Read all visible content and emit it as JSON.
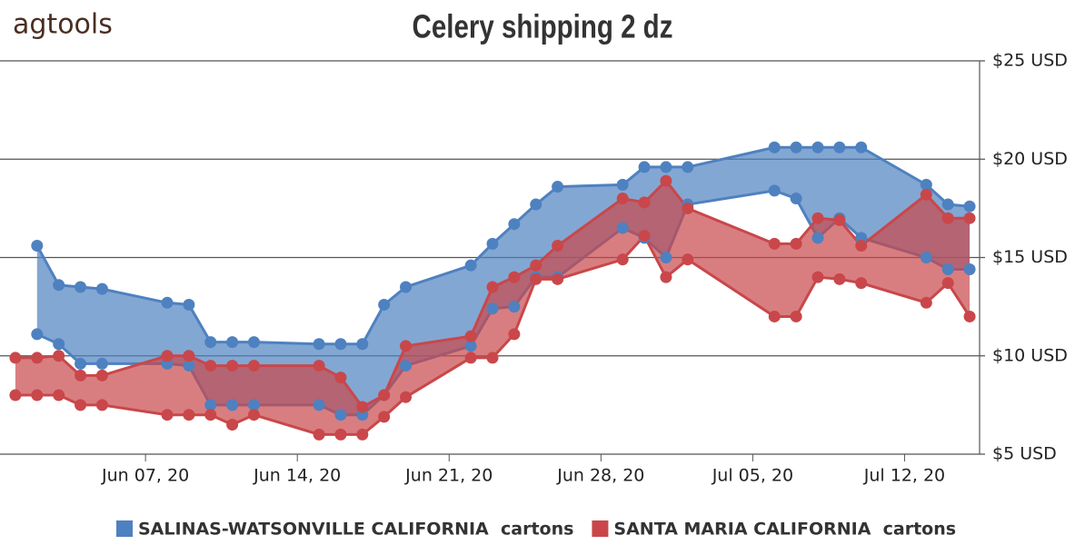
{
  "logo": "agtools",
  "chart_data": {
    "type": "arearange",
    "title": "Celery shipping   2 dz",
    "x": [
      "2020-06-01",
      "2020-06-02",
      "2020-06-03",
      "2020-06-04",
      "2020-06-05",
      "2020-06-08",
      "2020-06-09",
      "2020-06-10",
      "2020-06-11",
      "2020-06-12",
      "2020-06-15",
      "2020-06-16",
      "2020-06-17",
      "2020-06-18",
      "2020-06-19",
      "2020-06-22",
      "2020-06-23",
      "2020-06-24",
      "2020-06-25",
      "2020-06-26",
      "2020-06-29",
      "2020-06-30",
      "2020-07-01",
      "2020-07-02",
      "2020-07-06",
      "2020-07-07",
      "2020-07-08",
      "2020-07-09",
      "2020-07-10",
      "2020-07-13",
      "2020-07-14",
      "2020-07-15"
    ],
    "series": [
      {
        "name": "SALINAS-WATSONVILLE CALIFORNIA  cartons",
        "color": "#4e81c0",
        "high": [
          null,
          15.6,
          13.6,
          13.5,
          13.4,
          12.7,
          12.6,
          10.7,
          10.7,
          10.7,
          10.6,
          10.6,
          10.6,
          12.6,
          13.5,
          14.6,
          15.7,
          16.7,
          17.7,
          18.6,
          18.7,
          19.6,
          19.6,
          19.6,
          20.6,
          20.6,
          20.6,
          20.6,
          20.6,
          18.7,
          17.7,
          17.6
        ],
        "low": [
          null,
          11.1,
          10.6,
          9.6,
          9.6,
          9.6,
          9.5,
          7.5,
          7.5,
          7.5,
          7.5,
          7.0,
          7.0,
          8.0,
          9.5,
          10.5,
          12.4,
          12.5,
          14.0,
          14.0,
          16.5,
          16.0,
          15.0,
          17.7,
          18.4,
          18.0,
          16.0,
          17.0,
          16.0,
          15.0,
          14.4,
          14.4
        ]
      },
      {
        "name": "SANTA MARIA CALIFORNIA  cartons",
        "color": "#c9474a",
        "high": [
          9.9,
          9.9,
          10.0,
          9.0,
          9.0,
          10.0,
          10.0,
          9.5,
          9.5,
          9.5,
          9.5,
          8.9,
          7.4,
          8.0,
          10.5,
          11.0,
          13.5,
          14.0,
          14.6,
          15.6,
          18.0,
          17.8,
          18.9,
          17.5,
          15.7,
          15.7,
          17.0,
          16.9,
          15.6,
          18.2,
          17.0,
          17.0
        ],
        "low": [
          8.0,
          8.0,
          8.0,
          7.5,
          7.5,
          7.0,
          7.0,
          7.0,
          6.5,
          7.0,
          6.0,
          6.0,
          6.0,
          6.9,
          7.9,
          9.9,
          9.9,
          11.1,
          13.9,
          13.9,
          14.9,
          16.1,
          14.0,
          14.9,
          12.0,
          12.0,
          14.0,
          13.9,
          13.7,
          12.7,
          13.7,
          12.0
        ]
      }
    ],
    "xlim": [
      "2020-05-31T12:00",
      "2020-07-15T11:00"
    ],
    "xticks": [
      {
        "value": "2020-06-07",
        "label": "Jun 07, 20"
      },
      {
        "value": "2020-06-14",
        "label": "Jun 14, 20"
      },
      {
        "value": "2020-06-21",
        "label": "Jun 21, 20"
      },
      {
        "value": "2020-06-28",
        "label": "Jun 28, 20"
      },
      {
        "value": "2020-07-05",
        "label": "Jul 05, 20"
      },
      {
        "value": "2020-07-12",
        "label": "Jul 12, 20"
      }
    ],
    "ylim": [
      5,
      25
    ],
    "yticks": [
      {
        "value": 5,
        "label": "$5 USD"
      },
      {
        "value": 10,
        "label": "$10 USD"
      },
      {
        "value": 15,
        "label": "$15 USD"
      },
      {
        "value": 20,
        "label": "$20 USD"
      },
      {
        "value": 25,
        "label": "$25 USD"
      }
    ],
    "grid": true
  }
}
